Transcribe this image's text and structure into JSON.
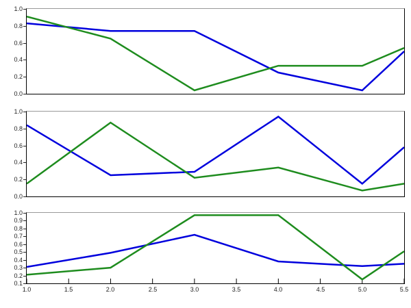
{
  "colors": {
    "background": "#ffffff",
    "spine": "#000000",
    "spine_top": "#999999",
    "tick_text": "#222222",
    "blue_series": "#0000dd",
    "green_series": "#1e8c1e"
  },
  "chart_data": [
    {
      "type": "line",
      "title": "",
      "x": [
        1.0,
        2.0,
        3.0,
        4.0,
        5.0,
        5.5
      ],
      "series": [
        {
          "name": "blue",
          "color": "#0000dd",
          "values": [
            0.83,
            0.74,
            0.74,
            0.25,
            0.04,
            0.5
          ]
        },
        {
          "name": "green",
          "color": "#1e8c1e",
          "values": [
            0.91,
            0.65,
            0.04,
            0.33,
            0.33,
            0.54
          ]
        }
      ],
      "xlim": [
        1.0,
        5.5
      ],
      "ylim": [
        0.0,
        1.0
      ],
      "ytick_labels": [
        "0.0",
        "0.2",
        "0.4",
        "0.6",
        "0.8",
        "1.0"
      ],
      "grid": false,
      "legend": false
    },
    {
      "type": "line",
      "title": "",
      "x": [
        1.0,
        2.0,
        3.0,
        4.0,
        5.0,
        5.5
      ],
      "series": [
        {
          "name": "blue",
          "color": "#0000dd",
          "values": [
            0.84,
            0.25,
            0.29,
            0.94,
            0.15,
            0.58
          ]
        },
        {
          "name": "green",
          "color": "#1e8c1e",
          "values": [
            0.15,
            0.87,
            0.22,
            0.34,
            0.07,
            0.15
          ]
        }
      ],
      "xlim": [
        1.0,
        5.5
      ],
      "ylim": [
        0.0,
        1.0
      ],
      "ytick_labels": [
        "0.0",
        "0.2",
        "0.4",
        "0.6",
        "0.8",
        "1.0"
      ],
      "grid": false,
      "legend": false
    },
    {
      "type": "line",
      "title": "",
      "x": [
        1.0,
        2.0,
        3.0,
        4.0,
        5.0,
        5.5
      ],
      "series": [
        {
          "name": "blue",
          "color": "#0000dd",
          "values": [
            0.31,
            0.49,
            0.72,
            0.38,
            0.32,
            0.35
          ]
        },
        {
          "name": "green",
          "color": "#1e8c1e",
          "values": [
            0.21,
            0.3,
            0.97,
            0.97,
            0.15,
            0.51
          ]
        }
      ],
      "xlim": [
        1.0,
        5.5
      ],
      "ylim": [
        0.1,
        1.0
      ],
      "ytick_labels": [
        "0.1",
        "0.2",
        "0.3",
        "0.4",
        "0.5",
        "0.6",
        "0.7",
        "0.8",
        "0.9",
        "1.0"
      ],
      "xtick_labels": [
        "1.0",
        "1.5",
        "2.0",
        "2.5",
        "3.0",
        "3.5",
        "4.0",
        "4.5",
        "5.0",
        "5.5"
      ],
      "grid": false,
      "legend": false
    }
  ]
}
